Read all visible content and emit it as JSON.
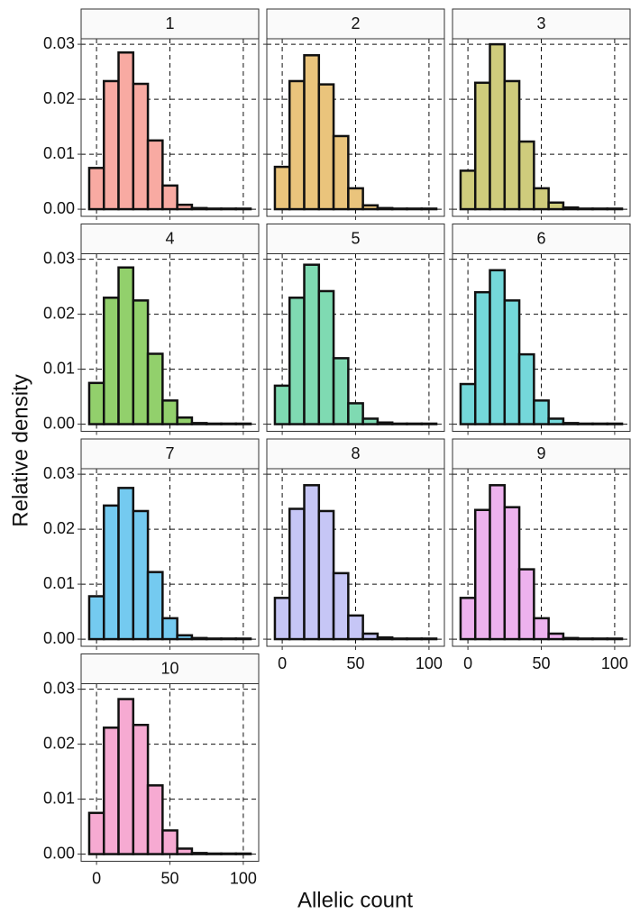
{
  "chart_data": [
    {
      "type": "histogram",
      "title": "1",
      "ylabel": "Relative density",
      "xlabel": "Allelic count",
      "color": "#f8aaa2",
      "bins": [
        -5,
        5,
        15,
        25,
        35,
        45,
        55,
        65,
        75,
        85,
        95,
        105
      ],
      "values": [
        0.0075,
        0.0233,
        0.0285,
        0.0228,
        0.0125,
        0.0043,
        0.0008,
        0.0002,
        0.0001,
        0.0001,
        0.0001
      ],
      "xlim": [
        -10.5,
        110.5
      ],
      "ylim": [
        -0.0013,
        0.031
      ],
      "xticks": [
        0,
        50,
        100
      ],
      "yticks": [
        {
          "value": 0,
          "label": "0.00"
        },
        {
          "value": 0.01,
          "label": "0.01"
        },
        {
          "value": 0.02,
          "label": "0.02"
        },
        {
          "value": 0.03,
          "label": "0.03"
        }
      ],
      "grid": true
    },
    {
      "type": "histogram",
      "title": "2",
      "color": "#eac47c",
      "bins": [
        -5,
        5,
        15,
        25,
        35,
        45,
        55,
        65,
        75,
        85,
        95,
        105
      ],
      "values": [
        0.0077,
        0.0233,
        0.028,
        0.0227,
        0.0133,
        0.0038,
        0.0007,
        0.0002,
        0.0001,
        0.0001,
        0.0001
      ],
      "xlim": [
        -10.5,
        110.5
      ],
      "ylim": [
        -0.0013,
        0.031
      ],
      "xticks": [
        0,
        50,
        100
      ],
      "yticks": [
        {
          "value": 0,
          "label": "0.00"
        },
        {
          "value": 0.01,
          "label": "0.01"
        },
        {
          "value": 0.02,
          "label": "0.02"
        },
        {
          "value": 0.03,
          "label": "0.03"
        }
      ],
      "grid": true
    },
    {
      "type": "histogram",
      "title": "3",
      "color": "#cfcc7c",
      "bins": [
        -5,
        5,
        15,
        25,
        35,
        45,
        55,
        65,
        75,
        85,
        95,
        105
      ],
      "values": [
        0.007,
        0.023,
        0.03,
        0.0233,
        0.0123,
        0.0038,
        0.0012,
        0.0003,
        0.0001,
        0.0001,
        0.0001
      ],
      "xlim": [
        -10.5,
        110.5
      ],
      "ylim": [
        -0.0013,
        0.031
      ],
      "xticks": [
        0,
        50,
        100
      ],
      "yticks": [
        {
          "value": 0,
          "label": "0.00"
        },
        {
          "value": 0.01,
          "label": "0.01"
        },
        {
          "value": 0.02,
          "label": "0.02"
        },
        {
          "value": 0.03,
          "label": "0.03"
        }
      ],
      "grid": true
    },
    {
      "type": "histogram",
      "title": "4",
      "color": "#92d06c",
      "bins": [
        -5,
        5,
        15,
        25,
        35,
        45,
        55,
        65,
        75,
        85,
        95,
        105
      ],
      "values": [
        0.0075,
        0.023,
        0.0285,
        0.0225,
        0.0128,
        0.0043,
        0.0012,
        0.0002,
        0.0001,
        0.0001,
        0.0001
      ],
      "xlim": [
        -10.5,
        110.5
      ],
      "ylim": [
        -0.0013,
        0.031
      ],
      "xticks": [
        0,
        50,
        100
      ],
      "yticks": [
        {
          "value": 0,
          "label": "0.00"
        },
        {
          "value": 0.01,
          "label": "0.01"
        },
        {
          "value": 0.02,
          "label": "0.02"
        },
        {
          "value": 0.03,
          "label": "0.03"
        }
      ],
      "grid": true
    },
    {
      "type": "histogram",
      "title": "5",
      "color": "#7fdab2",
      "bins": [
        -5,
        5,
        15,
        25,
        35,
        45,
        55,
        65,
        75,
        85,
        95,
        105
      ],
      "values": [
        0.007,
        0.023,
        0.029,
        0.0242,
        0.012,
        0.0038,
        0.001,
        0.0003,
        0.0001,
        0.0001,
        0.0001
      ],
      "xlim": [
        -10.5,
        110.5
      ],
      "ylim": [
        -0.0013,
        0.031
      ],
      "xticks": [
        0,
        50,
        100
      ],
      "yticks": [
        {
          "value": 0,
          "label": "0.00"
        },
        {
          "value": 0.01,
          "label": "0.01"
        },
        {
          "value": 0.02,
          "label": "0.02"
        },
        {
          "value": 0.03,
          "label": "0.03"
        }
      ],
      "grid": true
    },
    {
      "type": "histogram",
      "title": "6",
      "color": "#74d8da",
      "bins": [
        -5,
        5,
        15,
        25,
        35,
        45,
        55,
        65,
        75,
        85,
        95,
        105
      ],
      "values": [
        0.0073,
        0.024,
        0.028,
        0.0225,
        0.0127,
        0.0043,
        0.001,
        0.0002,
        0.0001,
        0.0001,
        0.0001
      ],
      "xlim": [
        -10.5,
        110.5
      ],
      "ylim": [
        -0.0013,
        0.031
      ],
      "xticks": [
        0,
        50,
        100
      ],
      "yticks": [
        {
          "value": 0,
          "label": "0.00"
        },
        {
          "value": 0.01,
          "label": "0.01"
        },
        {
          "value": 0.02,
          "label": "0.02"
        },
        {
          "value": 0.03,
          "label": "0.03"
        }
      ],
      "grid": true
    },
    {
      "type": "histogram",
      "title": "7",
      "color": "#74caf0",
      "bins": [
        -5,
        5,
        15,
        25,
        35,
        45,
        55,
        65,
        75,
        85,
        95,
        105
      ],
      "values": [
        0.0078,
        0.0243,
        0.0275,
        0.0233,
        0.0122,
        0.0038,
        0.0007,
        0.0002,
        0.0001,
        0.0001,
        0.0001
      ],
      "xlim": [
        -10.5,
        110.5
      ],
      "ylim": [
        -0.0013,
        0.031
      ],
      "xticks": [
        0,
        50,
        100
      ],
      "yticks": [
        {
          "value": 0,
          "label": "0.00"
        },
        {
          "value": 0.01,
          "label": "0.01"
        },
        {
          "value": 0.02,
          "label": "0.02"
        },
        {
          "value": 0.03,
          "label": "0.03"
        }
      ],
      "grid": true
    },
    {
      "type": "histogram",
      "title": "8",
      "color": "#c6c6f6",
      "bins": [
        -5,
        5,
        15,
        25,
        35,
        45,
        55,
        65,
        75,
        85,
        95,
        105
      ],
      "values": [
        0.0075,
        0.0237,
        0.028,
        0.0233,
        0.012,
        0.0043,
        0.001,
        0.0003,
        0.0001,
        0.0001,
        0.0001
      ],
      "xlim": [
        -10.5,
        110.5
      ],
      "ylim": [
        -0.0013,
        0.031
      ],
      "xticks": [
        0,
        50,
        100
      ],
      "yticks": [
        {
          "value": 0,
          "label": "0.00"
        },
        {
          "value": 0.01,
          "label": "0.01"
        },
        {
          "value": 0.02,
          "label": "0.02"
        },
        {
          "value": 0.03,
          "label": "0.03"
        }
      ],
      "grid": true
    },
    {
      "type": "histogram",
      "title": "9",
      "color": "#edb2ee",
      "bins": [
        -5,
        5,
        15,
        25,
        35,
        45,
        55,
        65,
        75,
        85,
        95,
        105
      ],
      "values": [
        0.0075,
        0.0235,
        0.028,
        0.024,
        0.0127,
        0.0038,
        0.001,
        0.0002,
        0.0001,
        0.0001,
        0.0001
      ],
      "xlim": [
        -10.5,
        110.5
      ],
      "ylim": [
        -0.0013,
        0.031
      ],
      "xticks": [
        0,
        50,
        100
      ],
      "yticks": [
        {
          "value": 0,
          "label": "0.00"
        },
        {
          "value": 0.01,
          "label": "0.01"
        },
        {
          "value": 0.02,
          "label": "0.02"
        },
        {
          "value": 0.03,
          "label": "0.03"
        }
      ],
      "grid": true
    },
    {
      "type": "histogram",
      "title": "10",
      "color": "#f6aad2",
      "bins": [
        -5,
        5,
        15,
        25,
        35,
        45,
        55,
        65,
        75,
        85,
        95,
        105
      ],
      "values": [
        0.0075,
        0.023,
        0.0282,
        0.0235,
        0.0125,
        0.0043,
        0.001,
        0.0002,
        0.0001,
        0.0001,
        0.0001
      ],
      "xlim": [
        -10.5,
        110.5
      ],
      "ylim": [
        -0.0013,
        0.031
      ],
      "xticks": [
        0,
        50,
        100
      ],
      "yticks": [
        {
          "value": 0,
          "label": "0.00"
        },
        {
          "value": 0.01,
          "label": "0.01"
        },
        {
          "value": 0.02,
          "label": "0.02"
        },
        {
          "value": 0.03,
          "label": "0.03"
        }
      ],
      "grid": true
    }
  ]
}
